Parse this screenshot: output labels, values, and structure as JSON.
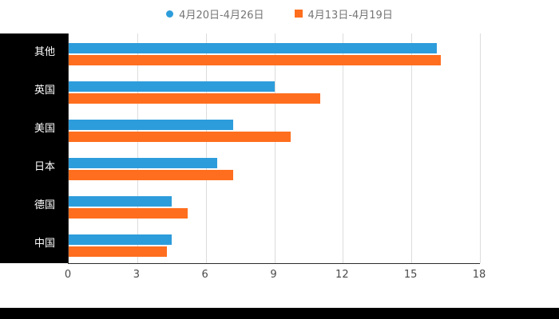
{
  "legend": {
    "items": [
      {
        "label": "4月20日-4月26日",
        "color": "#2D9CDB",
        "marker": "circle"
      },
      {
        "label": "4月13日-4月19日",
        "color": "#FF6E1E",
        "marker": "square"
      }
    ]
  },
  "chart_data": {
    "type": "bar",
    "orientation": "horizontal",
    "title": "",
    "categories": [
      "其他",
      "英国",
      "美国",
      "日本",
      "德国",
      "中国"
    ],
    "series": [
      {
        "name": "4月20日-4月26日",
        "color": "#2D9CDB",
        "values": [
          16.1,
          9.0,
          7.2,
          6.5,
          4.5,
          4.5
        ]
      },
      {
        "name": "4月13日-4月19日",
        "color": "#FF6E1E",
        "values": [
          16.3,
          11.0,
          9.7,
          7.2,
          5.2,
          4.3
        ]
      }
    ],
    "xlabel": "",
    "ylabel": "",
    "xlim": [
      0,
      18
    ],
    "x_ticks": [
      0,
      3,
      6,
      9,
      12,
      15,
      18
    ],
    "grid": true,
    "legend_position": "top"
  },
  "colors": {
    "axis": "#2b2b2b",
    "gridline": "#dcdcdc",
    "tick_label": "#4a4a4a",
    "legend_text": "#757575",
    "label_panel_bg": "#000000",
    "label_panel_text": "#ffffff"
  }
}
